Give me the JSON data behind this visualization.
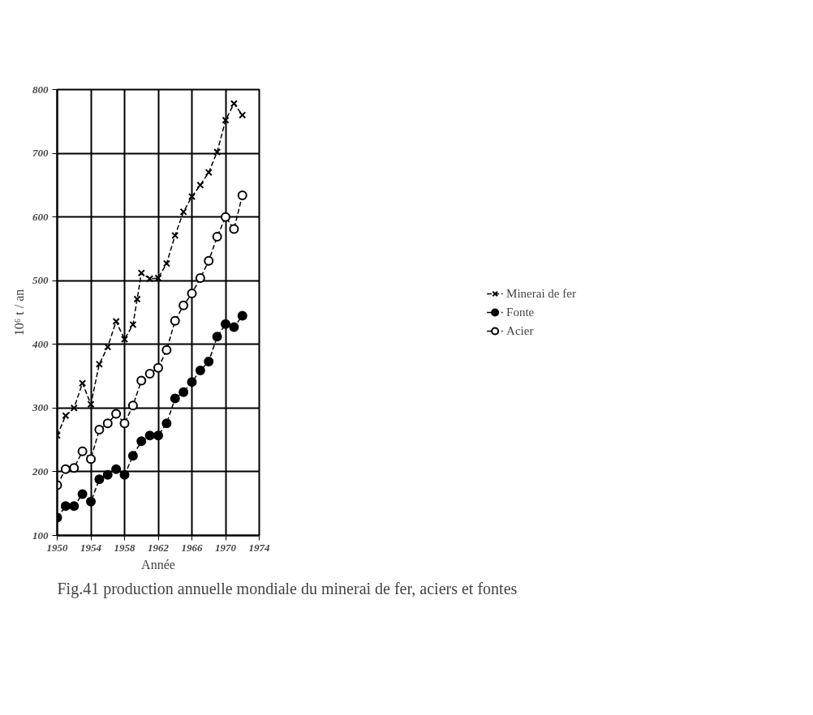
{
  "chart_data": {
    "type": "line",
    "xlabel": "Année",
    "ylabel": "10⁶ t / an",
    "x": [
      1950,
      1951,
      1952,
      1953,
      1954,
      1955,
      1956,
      1957,
      1958,
      1959,
      1960,
      1961,
      1962,
      1963,
      1964,
      1965,
      1966,
      1967,
      1968,
      1969,
      1970,
      1971,
      1972
    ],
    "series": [
      {
        "name": "Minerai de fer",
        "color": "#000000",
        "marker": "cross",
        "x": [
          1950,
          1951,
          1952,
          1953,
          1954,
          1955,
          1956,
          1957,
          1958,
          1959,
          1959.5,
          1960,
          1961,
          1962,
          1963,
          1964,
          1965,
          1966,
          1967,
          1968,
          1969,
          1970,
          1971,
          1972
        ],
        "values": [
          257,
          288,
          300,
          339,
          306,
          369,
          396,
          436,
          408,
          431,
          471,
          512,
          503,
          504,
          527,
          571,
          608,
          632,
          650,
          670,
          702,
          752,
          778,
          760
        ]
      },
      {
        "name": "Fonte",
        "color": "#000000",
        "marker": "circle",
        "values": [
          128,
          146,
          146,
          165,
          153,
          188,
          195,
          204,
          195,
          225,
          248,
          257,
          257,
          276,
          315,
          325,
          341,
          359,
          373,
          412,
          432,
          427,
          445
        ]
      },
      {
        "name": "Acier",
        "color": "#000000",
        "marker": "circle",
        "values": [
          179,
          204,
          206,
          232,
          220,
          266,
          276,
          291,
          276,
          304,
          343,
          354,
          363,
          391,
          437,
          461,
          480,
          504,
          531,
          569,
          600,
          581,
          634
        ]
      }
    ],
    "xlim": [
      1950,
      1974
    ],
    "xticks": [
      1950,
      1954,
      1958,
      1962,
      1966,
      1970,
      1974
    ],
    "ylim": [
      100,
      800
    ],
    "yticks": [
      100,
      200,
      300,
      400,
      500,
      600,
      700,
      800
    ],
    "grid": true,
    "legend": "right",
    "line_style": "dashed",
    "annotations": [
      "Fig.41 production annuelle mondiale du minerai de fer, aciers et fontes"
    ]
  }
}
